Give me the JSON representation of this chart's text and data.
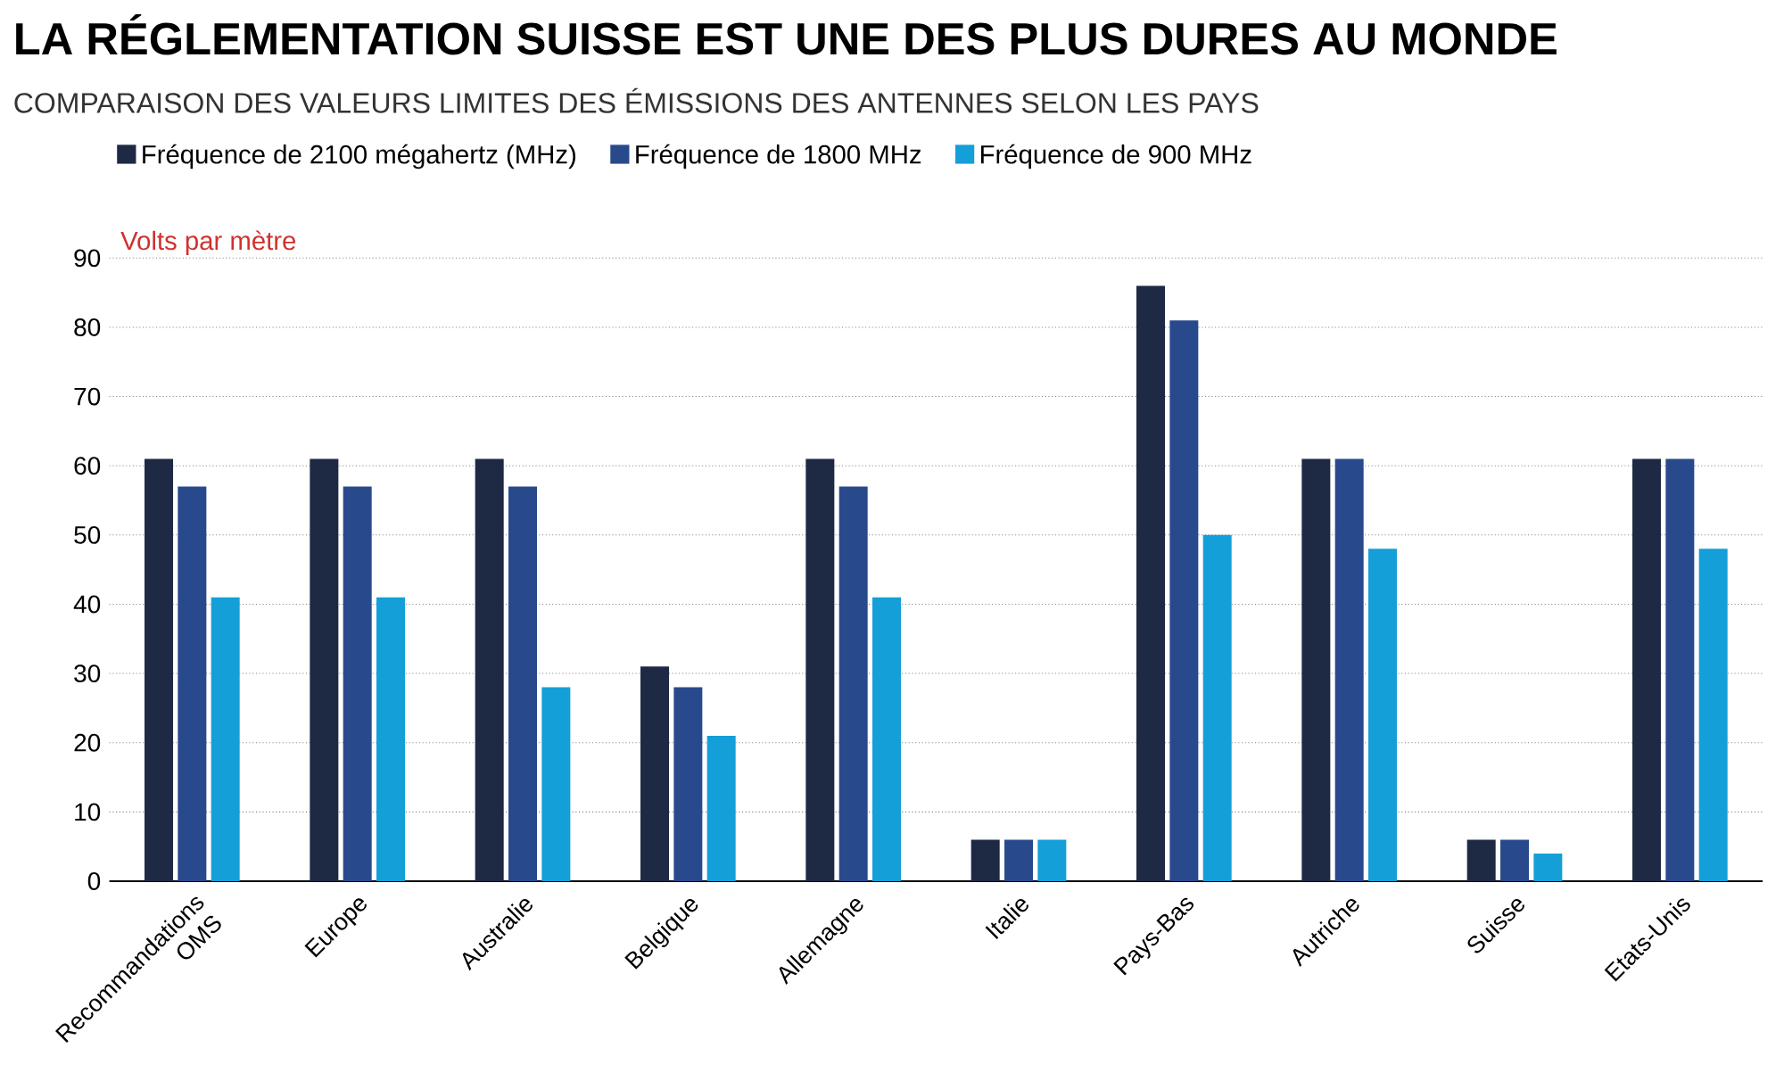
{
  "chart_data": {
    "type": "bar",
    "title": "LA RÉGLEMENTATION SUISSE EST UNE DES PLUS DURES AU MONDE",
    "subtitle": "COMPARAISON DES VALEURS LIMITES DES ÉMISSIONS DES ANTENNES SELON LES PAYS",
    "ylabel": "Volts par mètre",
    "categories": [
      "Recommandations OMS",
      "Europe",
      "Australie",
      "Belgique",
      "Allemagne",
      "Italie",
      "Pays-Bas",
      "Autriche",
      "Suisse",
      "Etats-Unis"
    ],
    "series": [
      {
        "name": "Fréquence de 2100 mégahertz (MHz)",
        "color": "#1e2944",
        "values": [
          61,
          61,
          61,
          31,
          61,
          6,
          86,
          61,
          6,
          61
        ]
      },
      {
        "name": "Fréquence de 1800 MHz",
        "color": "#284a8c",
        "values": [
          57,
          57,
          57,
          28,
          57,
          6,
          81,
          61,
          6,
          61
        ]
      },
      {
        "name": "Fréquence  de 900 MHz",
        "color": "#149fd8",
        "values": [
          41,
          41,
          28,
          21,
          41,
          6,
          50,
          48,
          4,
          48
        ]
      }
    ],
    "ylim": [
      0,
      90
    ],
    "yticks": [
      0,
      10,
      20,
      30,
      40,
      50,
      60,
      70,
      80,
      90
    ],
    "grid": "y",
    "legend": "top left"
  }
}
